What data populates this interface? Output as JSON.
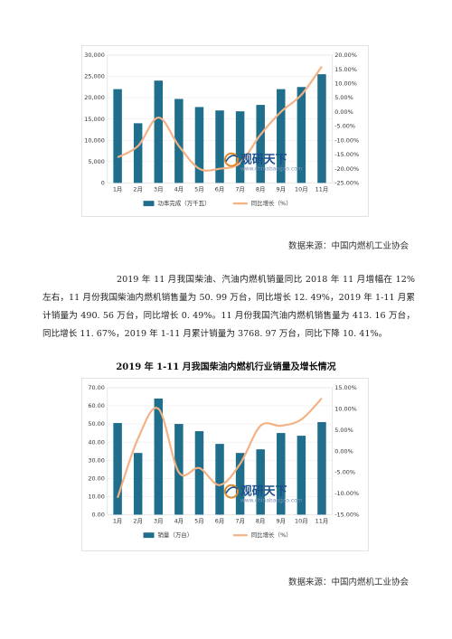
{
  "charts": [
    {
      "legend": {
        "bar_label": "功率完成（万千瓦）",
        "line_label": "同比增长（%）"
      },
      "watermark": {
        "cn": "观研天下",
        "en": "www.chinabaogao.com"
      },
      "source": "数据来源：中国内燃机工业协会"
    },
    {
      "legend": {
        "bar_label": "销量（万台）",
        "line_label": "同比增长（%）"
      },
      "watermark": {
        "cn": "观研天下",
        "en": "www.chinabaogao.com"
      },
      "source": "数据来源：中国内燃机工业协会"
    }
  ],
  "paragraph": "2019 年 11 月我国柴油、汽油内燃机销量同比 2018 年 11 月增幅在 12%左右，11 月份我国柴油内燃机销售量为 50. 99 万台，同比增长 12. 49%，2019 年 1-11 月累计销量为 490. 56 万台，同比增长 0. 49%。11 月份我国汽油内燃机销售量为 413. 16 万台，同比增长 11. 67%，2019 年 1-11 月累计销量为 3768. 97 万台，同比下降 10. 41%。",
  "chart2_title": "2019 年 1-11 月我国柴油内燃机行业销量及增长情况",
  "colors": {
    "bar": "#1f6e8c",
    "line": "#f4b183"
  },
  "chart_data": [
    {
      "type": "bar",
      "categories": [
        "1月",
        "2月",
        "3月",
        "4月",
        "5月",
        "6月",
        "7月",
        "8月",
        "9月",
        "10月",
        "11月"
      ],
      "series": [
        {
          "name": "功率完成（万千瓦）",
          "type": "bar",
          "axis": "left",
          "values": [
            22000,
            14000,
            24000,
            19700,
            17800,
            17000,
            16800,
            18300,
            22000,
            22500,
            25500
          ]
        },
        {
          "name": "同比增长（%）",
          "type": "line",
          "axis": "right",
          "values": [
            -16,
            -12,
            -2,
            -12,
            -20,
            -20,
            -18,
            -8,
            0,
            6,
            16
          ]
        }
      ],
      "y_left": {
        "min": 0,
        "max": 30000,
        "ticks": [
          "0",
          "5,000",
          "10,000",
          "15,000",
          "20,000",
          "25,000",
          "30,000"
        ]
      },
      "y_right": {
        "min": -25,
        "max": 20,
        "ticks": [
          "-25.00%",
          "-20.00%",
          "-15.00%",
          "-10.00%",
          "-5.00%",
          "0.00%",
          "5.00%",
          "10.00%",
          "15.00%",
          "20.00%"
        ]
      },
      "legend_position": "bottom"
    },
    {
      "type": "bar",
      "title": "2019 年 1-11 月我国柴油内燃机行业销量及增长情况",
      "categories": [
        "1月",
        "2月",
        "3月",
        "4月",
        "5月",
        "6月",
        "7月",
        "8月",
        "9月",
        "10月",
        "11月"
      ],
      "series": [
        {
          "name": "销量（万台）",
          "type": "bar",
          "axis": "left",
          "values": [
            50.5,
            34,
            64,
            50,
            46,
            39,
            34,
            36,
            45,
            43.5,
            51
          ]
        },
        {
          "name": "同比增长（%）",
          "type": "line",
          "axis": "right",
          "values": [
            -11,
            3,
            10,
            -5,
            -4,
            -8,
            -3,
            6,
            6,
            7.5,
            12.5
          ]
        }
      ],
      "y_left": {
        "min": 0,
        "max": 70,
        "ticks": [
          "0.00",
          "10.00",
          "20.00",
          "30.00",
          "40.00",
          "50.00",
          "60.00",
          "70.00"
        ]
      },
      "y_right": {
        "min": -15,
        "max": 15,
        "ticks": [
          "-15.00%",
          "-10.00%",
          "-5.00%",
          "0.00%",
          "5.00%",
          "10.00%",
          "15.00%"
        ]
      },
      "legend_position": "bottom"
    }
  ]
}
